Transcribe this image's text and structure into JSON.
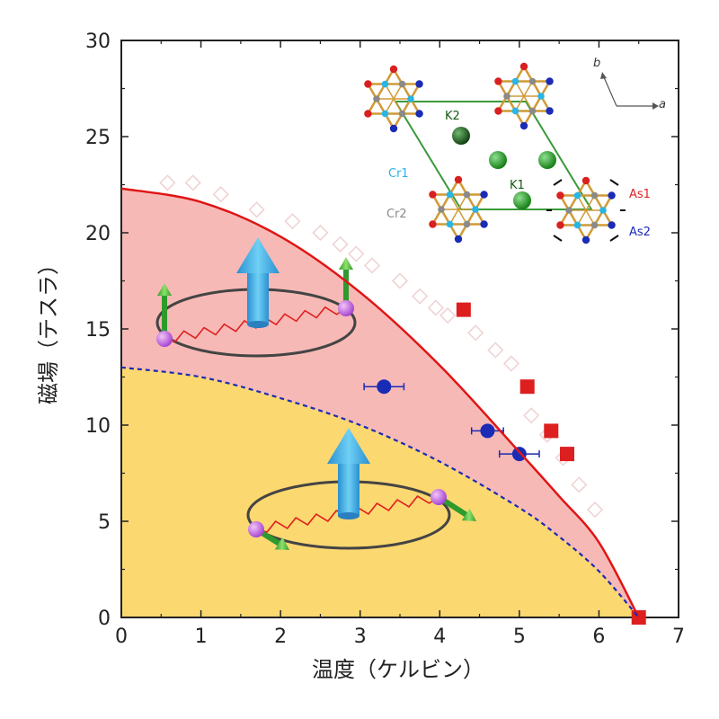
{
  "chart_data": {
    "type": "scatter",
    "xlabel": "温度（ケルビン）",
    "ylabel": "磁場（テスラ）",
    "xlim": [
      0,
      7
    ],
    "ylim": [
      0,
      30
    ],
    "x_ticks": [
      "0",
      "1",
      "2",
      "3",
      "4",
      "5",
      "6",
      "7"
    ],
    "y_ticks": [
      "0",
      "5",
      "10",
      "15",
      "20",
      "25",
      "30"
    ],
    "grid": false,
    "regions": [
      {
        "name": "upper-phase",
        "color": "#f7b9b6"
      },
      {
        "name": "lower-phase",
        "color": "#fcd870"
      }
    ],
    "series": [
      {
        "marker": "open-diamond",
        "color": "#f0d4d4",
        "x": [
          0.58,
          0.9,
          1.25,
          1.7,
          2.15,
          2.5,
          2.75,
          2.95,
          3.15,
          3.5,
          3.75,
          3.95,
          4.1,
          4.45,
          4.7,
          4.9,
          5.15,
          5.35,
          5.55,
          5.75,
          5.95
        ],
        "y": [
          22.6,
          22.6,
          22.0,
          21.2,
          20.6,
          20.0,
          19.4,
          18.9,
          18.3,
          17.5,
          16.7,
          16.1,
          15.7,
          14.8,
          13.9,
          13.2,
          10.5,
          9.5,
          8.3,
          6.9,
          5.6
        ]
      },
      {
        "marker": "square",
        "color": "#dd1f1f",
        "x": [
          4.3,
          5.1,
          5.4,
          5.6,
          6.5
        ],
        "y": [
          16.0,
          12.0,
          9.7,
          8.5,
          0.0
        ]
      },
      {
        "marker": "circle",
        "color": "#1a2bb5",
        "x": [
          3.3,
          4.6,
          5.0
        ],
        "y": [
          12.0,
          9.7,
          8.5
        ],
        "x_err": [
          0.25,
          0.2,
          0.25
        ]
      },
      {
        "marker": "solid-line",
        "color": "#e01515",
        "x": [
          0,
          1,
          2,
          3,
          4,
          5,
          5.5,
          6,
          6.5
        ],
        "y": [
          22.3,
          21.6,
          19.8,
          16.9,
          13.1,
          8.6,
          6.3,
          3.9,
          0
        ]
      },
      {
        "marker": "dashed-line",
        "color": "#1a2bb5",
        "x": [
          0,
          1,
          2,
          3,
          4,
          5,
          5.5,
          6,
          6.5
        ],
        "y": [
          13.0,
          12.5,
          11.4,
          10.0,
          8.1,
          5.7,
          4.2,
          2.4,
          0
        ]
      }
    ],
    "inset": {
      "labels": [
        {
          "text": "K2",
          "color": "#145a14"
        },
        {
          "text": "K1",
          "color": "#145a14"
        },
        {
          "text": "Cr1",
          "color": "#27b5e6"
        },
        {
          "text": "Cr2",
          "color": "#8a8a8a"
        },
        {
          "text": "As1",
          "color": "#e02020"
        },
        {
          "text": "As2",
          "color": "#1a2bb5"
        },
        {
          "text": "a",
          "color": "#333333"
        },
        {
          "text": "b",
          "color": "#333333"
        }
      ]
    }
  }
}
